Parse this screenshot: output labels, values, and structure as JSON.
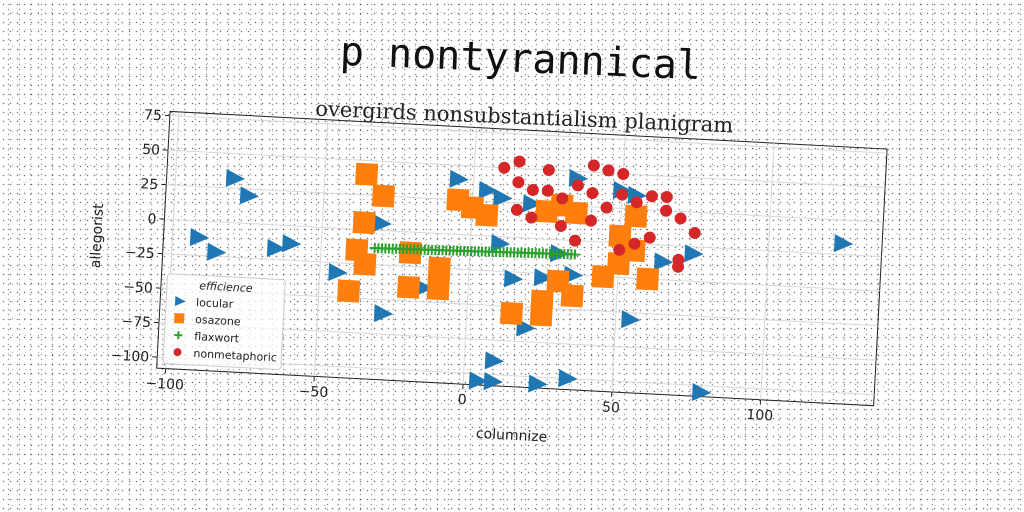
{
  "chart_data": {
    "type": "scatter",
    "title": "p nontyrannical",
    "subtitle": "overgirds nonsubstantialism planigram",
    "xlabel": "columnize",
    "ylabel": "allegorist",
    "xlim": [
      -103,
      138
    ],
    "ylim": [
      -108,
      78
    ],
    "xticks": [
      -100,
      -50,
      0,
      50,
      100
    ],
    "yticks": [
      75,
      50,
      25,
      0,
      -25,
      -50,
      -75,
      -100
    ],
    "grid": true,
    "legend": {
      "title": "efficience",
      "placement": "lower-left"
    },
    "series": [
      {
        "name": "locular",
        "marker": "triangle-right",
        "color": "#1f77b4",
        "points": [
          [
            -80,
            32
          ],
          [
            -75,
            20
          ],
          [
            -91,
            -12
          ],
          [
            -85,
            -22
          ],
          [
            -65,
            -17
          ],
          [
            -60,
            -13
          ],
          [
            -30,
            5
          ],
          [
            -44,
            -32
          ],
          [
            -28,
            -60
          ],
          [
            -15,
            -40
          ],
          [
            -5,
            40
          ],
          [
            5,
            33
          ],
          [
            10,
            28
          ],
          [
            20,
            25
          ],
          [
            35,
            45
          ],
          [
            50,
            38
          ],
          [
            55,
            35
          ],
          [
            15,
            -30
          ],
          [
            25,
            -28
          ],
          [
            35,
            -25
          ],
          [
            10,
            -5
          ],
          [
            30,
            -10
          ],
          [
            20,
            -65
          ],
          [
            10,
            -90
          ],
          [
            5,
            -105
          ],
          [
            10,
            -105
          ],
          [
            25,
            -105
          ],
          [
            35,
            -100
          ],
          [
            55,
            -55
          ],
          [
            65,
            -12
          ],
          [
            75,
            -5
          ],
          [
            80,
            -105
          ],
          [
            125,
            8
          ]
        ]
      },
      {
        "name": "osazone",
        "marker": "square",
        "color": "#ff7f0e",
        "points": [
          [
            -36,
            40
          ],
          [
            -30,
            25
          ],
          [
            -36,
            5
          ],
          [
            -38,
            -15
          ],
          [
            -35,
            -25
          ],
          [
            -40,
            -45
          ],
          [
            -20,
            -40
          ],
          [
            -10,
            -40
          ],
          [
            -10,
            -25
          ],
          [
            -20,
            -15
          ],
          [
            -5,
            25
          ],
          [
            0,
            20
          ],
          [
            5,
            15
          ],
          [
            25,
            20
          ],
          [
            30,
            25
          ],
          [
            35,
            20
          ],
          [
            30,
            -30
          ],
          [
            25,
            -45
          ],
          [
            35,
            -40
          ],
          [
            15,
            -55
          ],
          [
            25,
            -55
          ],
          [
            45,
            -25
          ],
          [
            50,
            -15
          ],
          [
            55,
            -5
          ],
          [
            50,
            5
          ],
          [
            55,
            20
          ],
          [
            60,
            -25
          ]
        ]
      },
      {
        "name": "flaxwort",
        "marker": "plus",
        "color": "#2ca02c",
        "x_from": -32,
        "x_to": 35,
        "x_step": 1.2,
        "y_start": -13,
        "y_end": -10
      },
      {
        "name": "nonmetaphoric",
        "marker": "circle",
        "color": "#d62728",
        "points": [
          [
            10,
            50
          ],
          [
            15,
            55
          ],
          [
            15,
            40
          ],
          [
            25,
            50
          ],
          [
            40,
            55
          ],
          [
            45,
            52
          ],
          [
            50,
            50
          ],
          [
            20,
            35
          ],
          [
            25,
            35
          ],
          [
            30,
            30
          ],
          [
            35,
            40
          ],
          [
            40,
            35
          ],
          [
            50,
            35
          ],
          [
            55,
            30
          ],
          [
            60,
            35
          ],
          [
            65,
            35
          ],
          [
            65,
            25
          ],
          [
            70,
            20
          ],
          [
            75,
            10
          ],
          [
            70,
            -10
          ],
          [
            70,
            -15
          ],
          [
            60,
            5
          ],
          [
            55,
            0
          ],
          [
            50,
            -5
          ],
          [
            15,
            20
          ],
          [
            20,
            15
          ],
          [
            30,
            10
          ],
          [
            40,
            15
          ],
          [
            35,
            0
          ],
          [
            45,
            25
          ]
        ]
      }
    ]
  }
}
